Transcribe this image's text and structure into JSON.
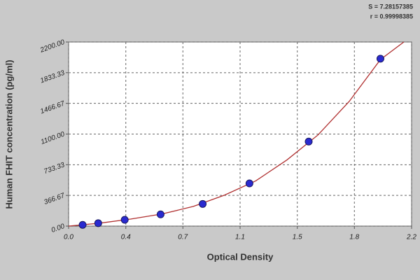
{
  "chart_data": {
    "type": "scatter",
    "xlabel": "Optical Density",
    "ylabel": "Human FHIT  concentration (pg/ml)",
    "annotations": [
      "S = 7.28157385",
      "r = 0.99998385"
    ],
    "x": [
      0.09,
      0.19,
      0.36,
      0.59,
      0.86,
      1.16,
      1.54,
      2.0
    ],
    "series": [
      {
        "color": "#2a2ad0",
        "values": [
          15,
          35,
          75,
          140,
          265,
          510,
          1010,
          2000
        ]
      }
    ],
    "curve": {
      "color": "#b03030",
      "x": [
        0,
        0.2,
        0.4,
        0.6,
        0.8,
        1.0,
        1.2,
        1.4,
        1.6,
        1.8,
        2.0,
        2.15
      ],
      "values": [
        0,
        35,
        85,
        145,
        235,
        370,
        540,
        790,
        1090,
        1490,
        1990,
        2200
      ]
    },
    "xlim": [
      0,
      2.2
    ],
    "xticks": [
      {
        "value": 0,
        "label": "0.0"
      },
      {
        "value": 0.367,
        "label": "0.4"
      },
      {
        "value": 0.733,
        "label": "0.7"
      },
      {
        "value": 1.1,
        "label": "1.1"
      },
      {
        "value": 1.467,
        "label": "1.5"
      },
      {
        "value": 1.833,
        "label": "1.8"
      },
      {
        "value": 2.2,
        "label": "2.2"
      }
    ],
    "ylim": [
      0,
      2200
    ],
    "yticks": [
      {
        "value": 0,
        "label": "0.00"
      },
      {
        "value": 366.67,
        "label": "366.67"
      },
      {
        "value": 733.33,
        "label": "733.33"
      },
      {
        "value": 1100,
        "label": "1100.00"
      },
      {
        "value": 1466.67,
        "label": "1466.67"
      },
      {
        "value": 1833.33,
        "label": "1833.33"
      },
      {
        "value": 2200,
        "label": "2200.00"
      }
    ],
    "grid": true
  }
}
